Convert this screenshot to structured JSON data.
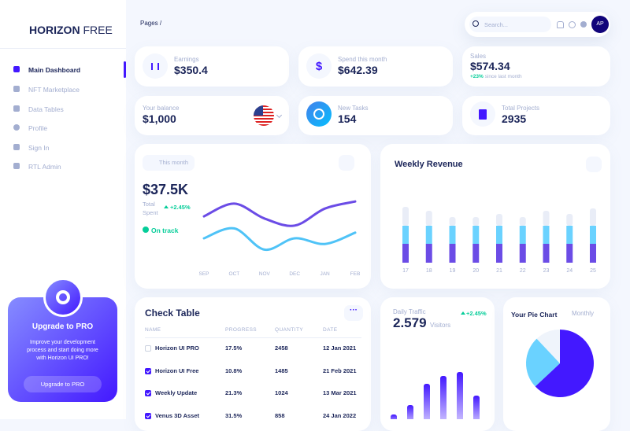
{
  "sidebar": {
    "brand_bold": "HORIZON",
    "brand_light": "FREE",
    "menu": [
      "Main Dashboard",
      "NFT Marketplace",
      "Data Tables",
      "Profile",
      "Sign In",
      "RTL Admin"
    ],
    "upgrade": {
      "title": "Upgrade to PRO",
      "text": "Improve your development process and start doing more with Horizon UI PRO!",
      "button": "Upgrade to PRO"
    }
  },
  "header": {
    "breadcrumb": "Pages /",
    "search_placeholder": "Search...",
    "avatar": "AP"
  },
  "stats": [
    {
      "label": "Earnings",
      "value": "$350.4"
    },
    {
      "label": "Spend this month",
      "value": "$642.39"
    },
    {
      "label": "Sales",
      "value": "$574.34",
      "change": "+23%",
      "change_note": "since last month"
    },
    {
      "label": "Your balance",
      "value": "$1,000"
    },
    {
      "label": "New Tasks",
      "value": "154"
    },
    {
      "label": "Total Projects",
      "value": "2935"
    }
  ],
  "spent_chart": {
    "button": "This month",
    "value": "$37.5K",
    "label": "Total Spent",
    "change": "+2.45%",
    "status": "On track",
    "chart_data": {
      "type": "line",
      "categories": [
        "SEP",
        "OCT",
        "NOV",
        "DEC",
        "JAN",
        "FEB"
      ],
      "series": [
        {
          "color": "#6b4ce6",
          "values": [
            61,
            79,
            58,
            48,
            72,
            82
          ]
        },
        {
          "color": "#4fc3f7",
          "values": [
            30,
            44,
            14,
            30,
            22,
            38
          ]
        }
      ],
      "ylim": [
        0,
        100
      ]
    }
  },
  "weekly_revenue": {
    "title": "Weekly Revenue",
    "chart_data": {
      "type": "bar",
      "stacked": true,
      "categories": [
        "17",
        "18",
        "19",
        "20",
        "21",
        "22",
        "23",
        "24",
        "25"
      ],
      "series": [
        {
          "color": "#6b4ce6",
          "values": [
            24,
            24,
            24,
            24,
            24,
            24,
            24,
            24,
            24
          ]
        },
        {
          "color": "#6ad2ff",
          "values": [
            23,
            23,
            23,
            23,
            23,
            23,
            23,
            23,
            23
          ]
        },
        {
          "color": "#e9edf7",
          "values": [
            24,
            19,
            11,
            11,
            15,
            11,
            19,
            15,
            22
          ]
        }
      ],
      "ylim": [
        0,
        80
      ]
    }
  },
  "daily_traffic": {
    "title": "Daily Traffic",
    "value": "2.579",
    "unit": "Visitors",
    "change": "+2.45%",
    "chart_data": {
      "type": "bar",
      "categories": [
        null,
        null,
        null,
        null,
        null,
        null
      ],
      "values": [
        6,
        18,
        45,
        55,
        60,
        30
      ],
      "color": "#4318ff",
      "ylim": [
        0,
        70
      ]
    }
  },
  "pie": {
    "title": "Your Pie Chart",
    "dropdown": "Monthly",
    "chart_data": {
      "type": "pie",
      "values": [
        63,
        25,
        12
      ],
      "colors": [
        "#4318ff",
        "#6ad2ff",
        "#eff4fb"
      ]
    }
  },
  "check_table": {
    "title": "Check Table",
    "columns": [
      "NAME",
      "PROGRESS",
      "QUANTITY",
      "DATE"
    ],
    "rows": [
      {
        "checked": false,
        "cells": [
          "Horizon UI PRO",
          "17.5%",
          "2458",
          "12 Jan 2021"
        ]
      },
      {
        "checked": true,
        "cells": [
          "Horizon UI Free",
          "10.8%",
          "1485",
          "21 Feb 2021"
        ]
      },
      {
        "checked": true,
        "cells": [
          "Weekly Update",
          "21.3%",
          "1024",
          "13 Mar 2021"
        ]
      },
      {
        "checked": true,
        "cells": [
          "Venus 3D Asset",
          "31.5%",
          "858",
          "24 Jan 2022"
        ]
      }
    ]
  }
}
